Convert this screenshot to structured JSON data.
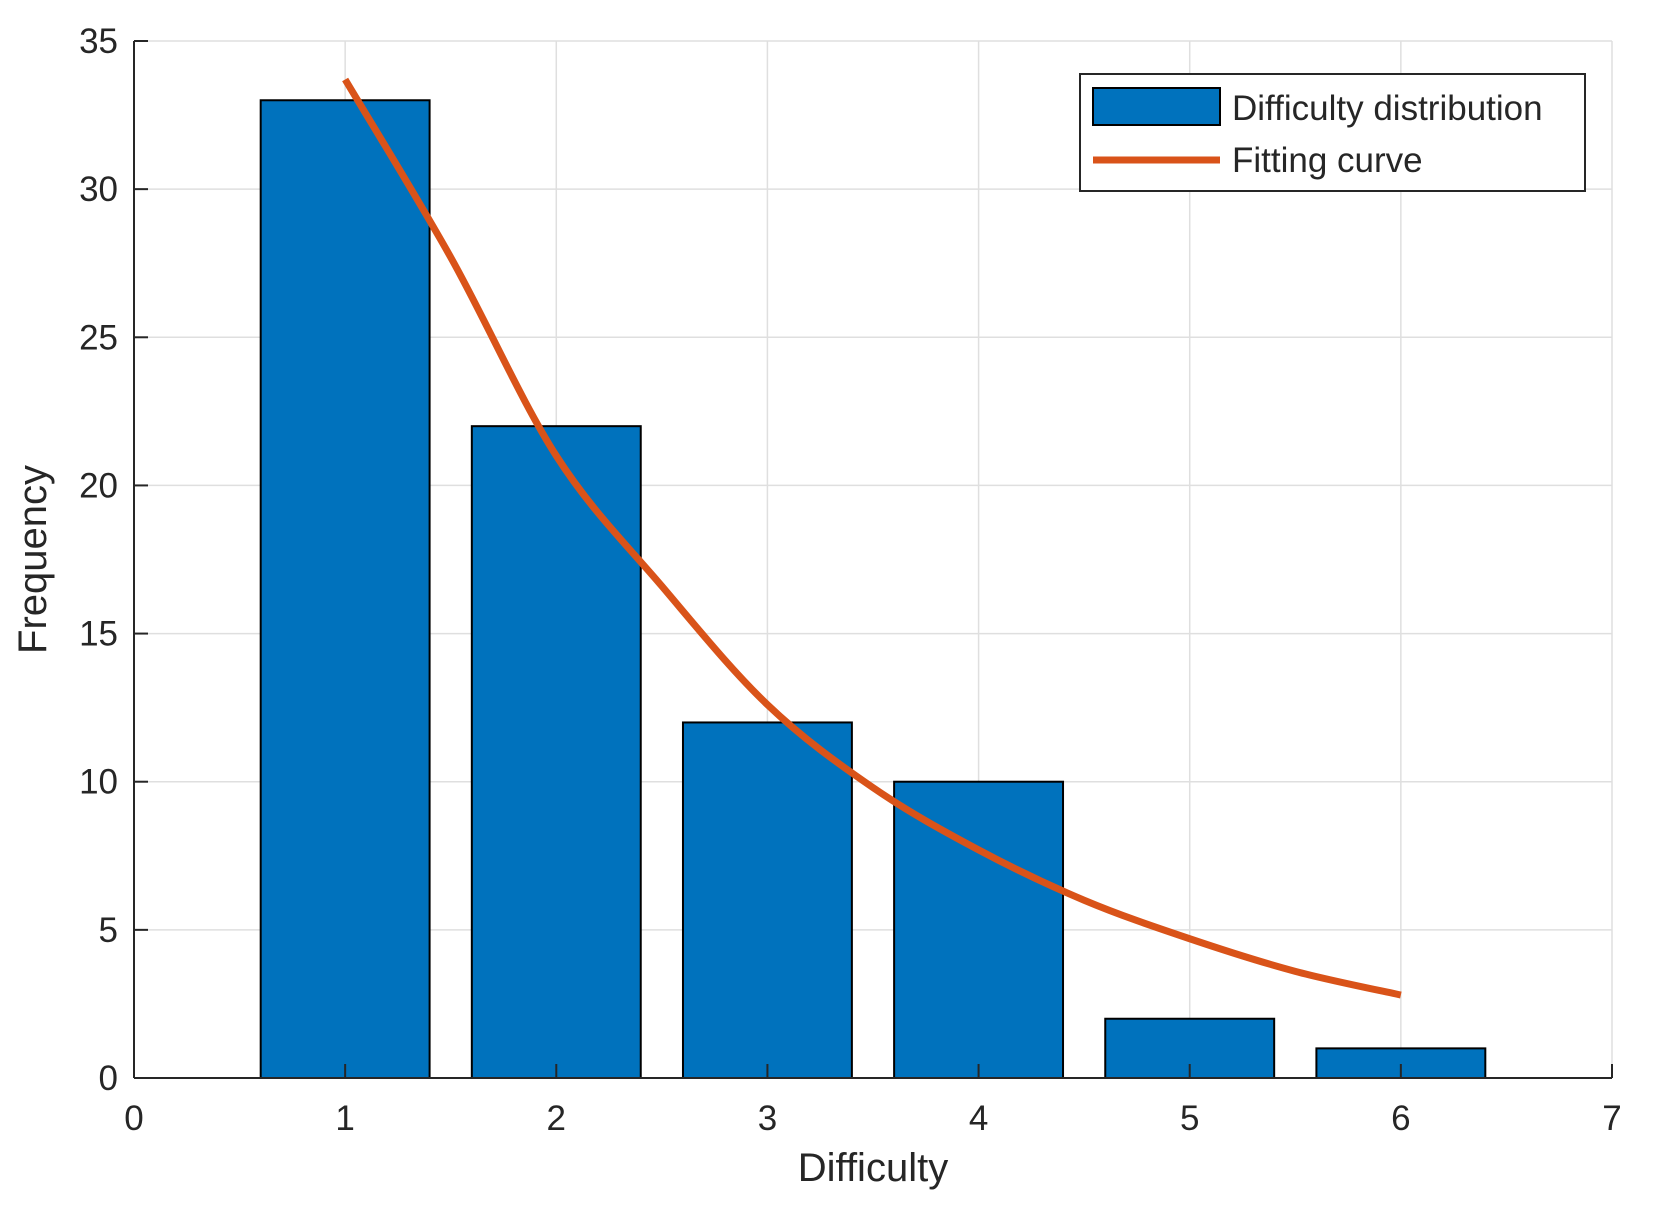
{
  "chart_data": {
    "type": "bar",
    "title": "",
    "xlabel": "Difficulty",
    "ylabel": "Frequency",
    "xlim": [
      0,
      7
    ],
    "ylim": [
      0,
      35
    ],
    "xticks": [
      0,
      1,
      2,
      3,
      4,
      5,
      6,
      7
    ],
    "yticks": [
      0,
      5,
      10,
      15,
      20,
      25,
      30,
      35
    ],
    "grid": true,
    "legend_position": "top-right",
    "series": [
      {
        "name": "Difficulty distribution",
        "type": "bar",
        "color": "#0072BD",
        "x": [
          1,
          2,
          3,
          4,
          5,
          6
        ],
        "values": [
          33,
          22,
          12,
          10,
          2,
          1
        ]
      },
      {
        "name": "Fitting curve",
        "type": "line",
        "color": "#D95319",
        "x": [
          1,
          1.5,
          2,
          2.5,
          3,
          3.5,
          4,
          4.5,
          5,
          5.5,
          6
        ],
        "values": [
          33.7,
          27.7,
          21.0,
          16.6,
          12.6,
          9.8,
          7.7,
          6.0,
          4.7,
          3.6,
          2.8
        ]
      }
    ]
  }
}
